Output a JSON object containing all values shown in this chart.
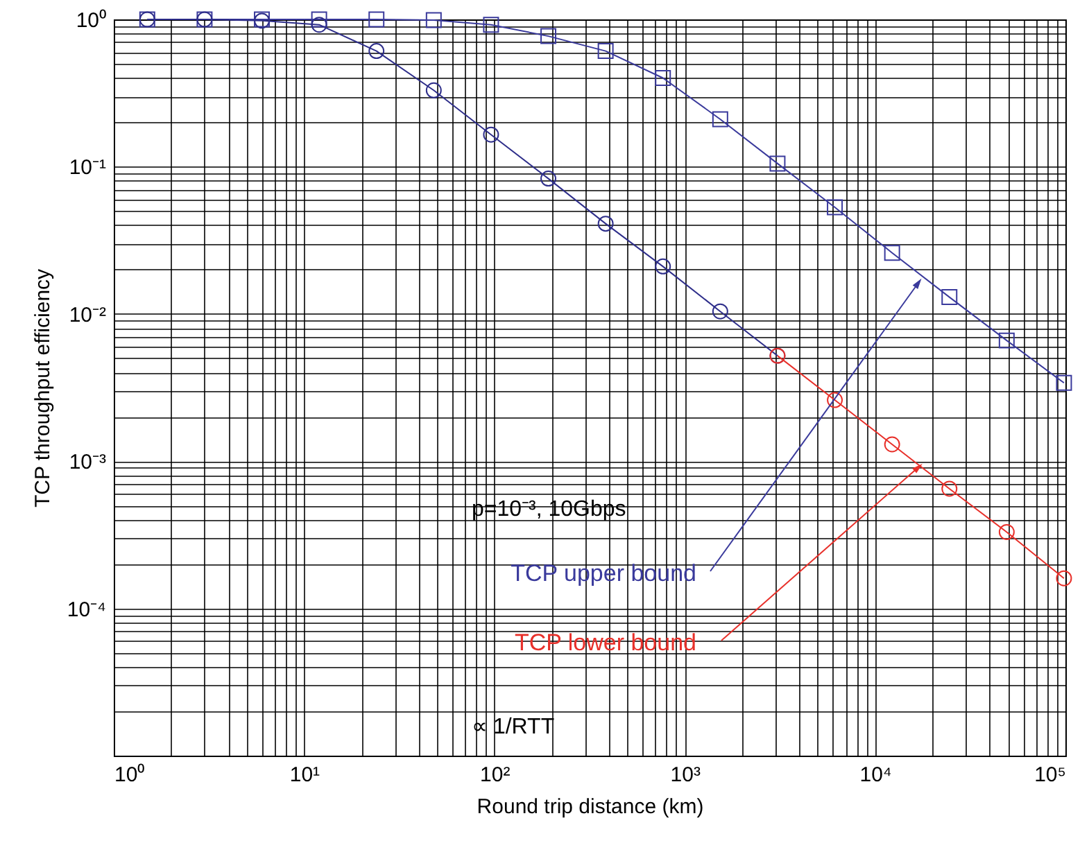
{
  "chart_data": {
    "type": "line",
    "xlabel": "Round trip distance (km)",
    "ylabel": "TCP throughput efficiency",
    "log": "xy",
    "grid": true,
    "xlim": [
      1,
      100000
    ],
    "xticks": [
      {
        "value": 1,
        "label": "10⁰"
      },
      {
        "value": 2,
        "label": null
      },
      {
        "value": 3,
        "label": null
      },
      {
        "value": 4,
        "label": null
      },
      {
        "value": 5,
        "label": null
      },
      {
        "value": 6,
        "label": null
      },
      {
        "value": 7,
        "label": null
      },
      {
        "value": 8,
        "label": null
      },
      {
        "value": 9,
        "label": null
      },
      {
        "value": 10,
        "label": "10¹"
      },
      {
        "value": 20,
        "label": null
      },
      {
        "value": 30,
        "label": null
      },
      {
        "value": 40,
        "label": null
      },
      {
        "value": 50,
        "label": null
      },
      {
        "value": 60,
        "label": null
      },
      {
        "value": 70,
        "label": null
      },
      {
        "value": 80,
        "label": null
      },
      {
        "value": 90,
        "label": null
      },
      {
        "value": 100,
        "label": "10²"
      },
      {
        "value": 200,
        "label": null
      },
      {
        "value": 300,
        "label": null
      },
      {
        "value": 400,
        "label": null
      },
      {
        "value": 500,
        "label": null
      },
      {
        "value": 600,
        "label": null
      },
      {
        "value": 700,
        "label": null
      },
      {
        "value": 800,
        "label": null
      },
      {
        "value": 900,
        "label": null
      },
      {
        "value": 1000,
        "label": "10³"
      },
      {
        "value": 2000,
        "label": null
      },
      {
        "value": 3000,
        "label": null
      },
      {
        "value": 4000,
        "label": null
      },
      {
        "value": 5000,
        "label": null
      },
      {
        "value": 6000,
        "label": null
      },
      {
        "value": 7000,
        "label": null
      },
      {
        "value": 8000,
        "label": null
      },
      {
        "value": 9000,
        "label": null
      },
      {
        "value": 10000,
        "label": "10⁴"
      },
      {
        "value": 20000,
        "label": null
      },
      {
        "value": 30000,
        "label": null
      },
      {
        "value": 40000,
        "label": null
      },
      {
        "value": 50000,
        "label": null
      },
      {
        "value": 60000,
        "label": null
      },
      {
        "value": 70000,
        "label": null
      },
      {
        "value": 80000,
        "label": null
      },
      {
        "value": 90000,
        "label": null
      },
      {
        "value": 100000,
        "label": "10⁵"
      }
    ],
    "ylim": [
      1e-05,
      1
    ],
    "yticks": [
      {
        "value": 1e-05,
        "label": null
      },
      {
        "value": 2e-05,
        "label": null
      },
      {
        "value": 3e-05,
        "label": null
      },
      {
        "value": 4e-05,
        "label": null
      },
      {
        "value": 5e-05,
        "label": null
      },
      {
        "value": 6e-05,
        "label": null
      },
      {
        "value": 7e-05,
        "label": null
      },
      {
        "value": 8e-05,
        "label": null
      },
      {
        "value": 9e-05,
        "label": null
      },
      {
        "value": 0.0001,
        "label": "10⁻⁴"
      },
      {
        "value": 0.0002,
        "label": null
      },
      {
        "value": 0.0003,
        "label": null
      },
      {
        "value": 0.0004,
        "label": null
      },
      {
        "value": 0.0005,
        "label": null
      },
      {
        "value": 0.0006,
        "label": null
      },
      {
        "value": 0.0007,
        "label": null
      },
      {
        "value": 0.0008,
        "label": null
      },
      {
        "value": 0.0009,
        "label": null
      },
      {
        "value": 0.001,
        "label": "10⁻³"
      },
      {
        "value": 0.002,
        "label": null
      },
      {
        "value": 0.003,
        "label": null
      },
      {
        "value": 0.004,
        "label": null
      },
      {
        "value": 0.005,
        "label": null
      },
      {
        "value": 0.006,
        "label": null
      },
      {
        "value": 0.007,
        "label": null
      },
      {
        "value": 0.008,
        "label": null
      },
      {
        "value": 0.009,
        "label": null
      },
      {
        "value": 0.01,
        "label": "10⁻²"
      },
      {
        "value": 0.02,
        "label": null
      },
      {
        "value": 0.03,
        "label": null
      },
      {
        "value": 0.04,
        "label": null
      },
      {
        "value": 0.05,
        "label": null
      },
      {
        "value": 0.06,
        "label": null
      },
      {
        "value": 0.07,
        "label": null
      },
      {
        "value": 0.08,
        "label": null
      },
      {
        "value": 0.09,
        "label": null
      },
      {
        "value": 0.1,
        "label": "10⁻¹"
      },
      {
        "value": 0.2,
        "label": null
      },
      {
        "value": 0.3,
        "label": null
      },
      {
        "value": 0.4,
        "label": null
      },
      {
        "value": 0.5,
        "label": null
      },
      {
        "value": 0.6,
        "label": null
      },
      {
        "value": 0.7,
        "label": null
      },
      {
        "value": 0.8,
        "label": null
      },
      {
        "value": 0.9,
        "label": null
      },
      {
        "value": 1,
        "label": "10⁰"
      }
    ],
    "series": [
      {
        "name": "TCP upper bound",
        "color": "#3a3a9c",
        "marker": "square",
        "x": [
          1.5,
          3,
          6,
          12,
          24,
          48,
          96,
          192,
          384,
          768,
          1536,
          3072,
          6144,
          12288,
          24576,
          49152,
          98304
        ],
        "values": [
          1,
          1,
          1,
          1,
          1,
          0.99,
          0.92,
          0.77,
          0.61,
          0.4,
          0.21,
          0.105,
          0.053,
          0.026,
          0.013,
          0.0066,
          0.0034
        ]
      },
      {
        "color": "#2e2e8a",
        "marker": "circle",
        "x": [
          1.5,
          3,
          6,
          12,
          24,
          48,
          96,
          192,
          384,
          768,
          1536,
          3072
        ],
        "values": [
          1,
          1,
          0.98,
          0.92,
          0.61,
          0.33,
          0.165,
          0.083,
          0.041,
          0.021,
          0.0104,
          0.0052
        ]
      },
      {
        "name": "TCP lower bound",
        "color": "#e8302a",
        "marker": "circle",
        "x": [
          3072,
          6144,
          12288,
          24576,
          49152,
          98304
        ],
        "values": [
          0.0052,
          0.0026,
          0.0013,
          0.00065,
          0.00033,
          0.00016
        ]
      }
    ],
    "annotations": [
      "p=10⁻³, 10Gbps",
      "∝ 1/RTT"
    ]
  }
}
